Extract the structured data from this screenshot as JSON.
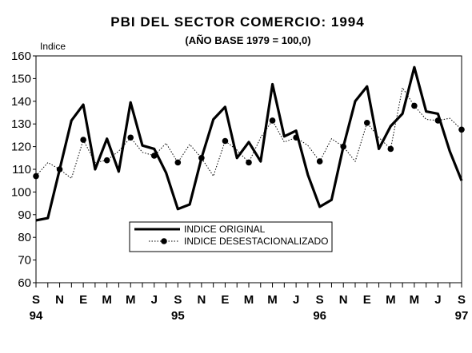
{
  "chart_data": {
    "type": "line",
    "title": "PBI DEL SECTOR COMERCIO: 1994",
    "subtitle": "(AÑO BASE 1979 = 100,0)",
    "ylabel": "Indice",
    "ylim": [
      60,
      160
    ],
    "yticks": [
      60,
      70,
      80,
      90,
      100,
      110,
      120,
      130,
      140,
      150,
      160
    ],
    "month_labels": [
      "S",
      "N",
      "E",
      "M",
      "M",
      "J",
      "S",
      "N",
      "E",
      "M",
      "M",
      "J",
      "S",
      "N",
      "E",
      "M",
      "M",
      "J",
      "S"
    ],
    "year_labels": [
      "94",
      "95",
      "96",
      "97"
    ],
    "series": [
      {
        "name": "INDICE ORIGINAL",
        "style": "solid-thick",
        "color": "#000000",
        "values": [
          87.5,
          88.5,
          110,
          131.5,
          138.5,
          110,
          123.5,
          109,
          139.5,
          120.5,
          119,
          108.5,
          92.5,
          94.5,
          115,
          132,
          137.5,
          115,
          122,
          113.5,
          147.5,
          124.5,
          127,
          107.5,
          93.5,
          96.5,
          120,
          140,
          146.5,
          119,
          129,
          134.5,
          155,
          135.5,
          134.5,
          118,
          105
        ]
      },
      {
        "name": "INDICE DESESTACIONALIZADO",
        "style": "dotted-with-markers",
        "color": "#000000",
        "values": [
          107,
          113,
          110,
          106,
          123,
          113,
          114,
          118,
          124,
          117.5,
          116,
          121.5,
          113,
          121,
          115,
          107,
          122.5,
          118.5,
          113,
          124,
          131.5,
          122,
          124,
          120.5,
          113.5,
          123.5,
          120,
          113.5,
          130.5,
          124,
          119,
          146,
          138,
          132,
          131.5,
          132.5,
          127.5
        ]
      }
    ],
    "legend_position": "center-bottom"
  }
}
